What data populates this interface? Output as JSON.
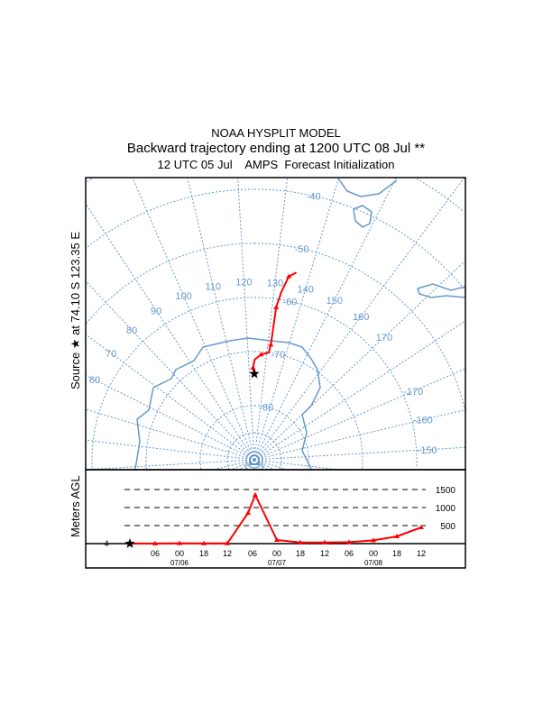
{
  "header": {
    "title": "NOAA HYSPLIT MODEL",
    "subtitle": "Backward trajectory ending at 1200 UTC 08 Jul **",
    "init": "12 UTC 05 Jul    AMPS  Forecast Initialization"
  },
  "source_label": "Source ★ at  74.10 S  123.35 E",
  "chart_data": [
    {
      "type": "map",
      "projection": "polar stereographic (south)",
      "source": {
        "lat": -74.1,
        "lon": 123.35
      },
      "latitude_labels": [
        "-40",
        "-50",
        "-60",
        "-70",
        "-80"
      ],
      "longitude_labels": [
        "60",
        "70",
        "80",
        "90",
        "100",
        "110",
        "120",
        "130",
        "140",
        "150",
        "160",
        "170",
        "-170",
        "-160",
        "-150"
      ],
      "trajectory": [
        [
          -74.1,
          123.35
        ],
        [
          -73.0,
          122.5
        ],
        [
          -71.5,
          123.5
        ],
        [
          -70.5,
          127
        ],
        [
          -70.0,
          131
        ],
        [
          -68.5,
          131.5
        ],
        [
          -64.5,
          131.5
        ],
        [
          -61.5,
          131.5
        ],
        [
          -58.5,
          132.5
        ],
        [
          -55.5,
          134
        ],
        [
          -54.5,
          136
        ]
      ],
      "color": "#ff0000",
      "grid_color": "#6699cc"
    },
    {
      "type": "line",
      "ylabel": "Meters AGL",
      "start_label": "4",
      "x_tick_labels": [
        "06",
        "00",
        "18",
        "12",
        "06",
        "00",
        "18",
        "12",
        "06",
        "00",
        "18",
        "12"
      ],
      "date_labels": [
        "07/06",
        "07/07",
        "07/08"
      ],
      "y_ticks": [
        500,
        1000,
        1500
      ],
      "y_tick_labels": [
        "500",
        "1000",
        "1500"
      ],
      "ylim": [
        0,
        1800
      ],
      "heights": [
        4,
        4,
        10,
        5,
        5,
        20,
        1350,
        100,
        30,
        30,
        40,
        90,
        200,
        450
      ],
      "marker_index_peak_side": 850,
      "color": "#ff0000"
    }
  ]
}
